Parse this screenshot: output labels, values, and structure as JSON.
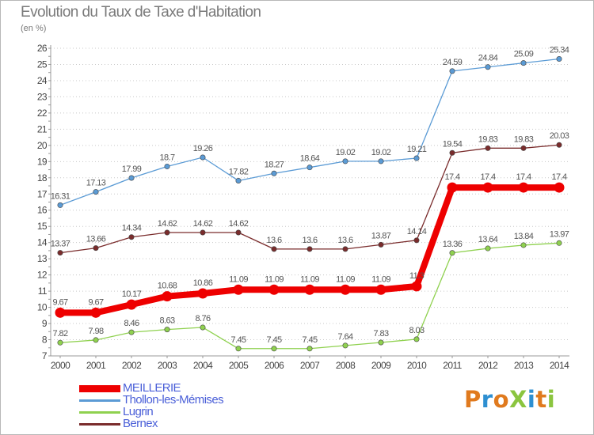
{
  "title": "Evolution du Taux de Taxe d'Habitation",
  "subtitle": "(en %)",
  "logo": {
    "text": "ProXiti",
    "colors": [
      "#e07a1e",
      "#2e8fd1",
      "#e07a1e",
      "#8bc53f",
      "#2e8fd1",
      "#e07a1e",
      "#8bc53f"
    ]
  },
  "chart_data": {
    "type": "line",
    "x": [
      2000,
      2001,
      2002,
      2003,
      2004,
      2005,
      2006,
      2007,
      2008,
      2009,
      2010,
      2011,
      2012,
      2013,
      2014
    ],
    "ylim": [
      7,
      26
    ],
    "yticks": [
      7,
      8,
      9,
      10,
      11,
      12,
      13,
      14,
      15,
      16,
      17,
      18,
      19,
      20,
      21,
      22,
      23,
      24,
      25,
      26
    ],
    "grid": "horizontal-dotted",
    "legend_position": "bottom-left",
    "series": [
      {
        "name": "Thollon-les-Mémises",
        "color": "#5b9bd5",
        "text_color": "#4a5fd8",
        "thick": false,
        "values": [
          16.31,
          17.13,
          17.99,
          18.7,
          19.26,
          17.82,
          18.27,
          18.64,
          19.02,
          19.02,
          19.21,
          24.59,
          24.84,
          25.09,
          25.34
        ],
        "labels": [
          "16.31",
          "17.13",
          "17.99",
          "18.7",
          "19.26",
          "17.82",
          "18.27",
          "18.64",
          "19.02",
          "19.02",
          "19.21",
          "24.59",
          "24.84",
          "25.09",
          "25.34"
        ]
      },
      {
        "name": "Bernex",
        "color": "#7a2c2c",
        "text_color": "#4a5fd8",
        "thick": false,
        "values": [
          13.37,
          13.66,
          14.34,
          14.62,
          14.62,
          14.62,
          13.6,
          13.6,
          13.6,
          13.87,
          14.14,
          19.54,
          19.83,
          19.83,
          20.03
        ],
        "labels": [
          "13.37",
          "13.66",
          "14.34",
          "14.62",
          "14.62",
          "14.62",
          "13.6",
          "13.6",
          "13.6",
          "13.87",
          "14.14",
          "19.54",
          "19.83",
          "19.83",
          "20.03"
        ]
      },
      {
        "name": "Lugrin",
        "color": "#8fd14f",
        "text_color": "#4a5fd8",
        "thick": false,
        "values": [
          7.82,
          7.98,
          8.46,
          8.63,
          8.76,
          7.45,
          7.45,
          7.45,
          7.64,
          7.83,
          8.03,
          13.36,
          13.64,
          13.84,
          13.97
        ],
        "labels": [
          "7.82",
          "7.98",
          "8.46",
          "8.63",
          "8.76",
          "7.45",
          "7.45",
          "7.45",
          "7.64",
          "7.83",
          "8.03",
          "13.36",
          "13.64",
          "13.84",
          "13.97"
        ]
      },
      {
        "name": "MEILLERIE",
        "color": "#ee0000",
        "text_color": "#4a5fd8",
        "thick": true,
        "values": [
          9.67,
          9.67,
          10.17,
          10.68,
          10.86,
          11.09,
          11.09,
          11.09,
          11.09,
          11.09,
          11.3,
          17.4,
          17.4,
          17.4,
          17.4
        ],
        "labels": [
          "9.67",
          "9.67",
          "10.17",
          "10.68",
          "10.86",
          "11.09",
          "11.09",
          "11.09",
          "11.09",
          "11.09",
          "11.3",
          "17.4",
          "17.4",
          "17.4",
          "17.4"
        ]
      }
    ],
    "legend_order": [
      "MEILLERIE",
      "Thollon-les-Mémises",
      "Lugrin",
      "Bernex"
    ]
  }
}
